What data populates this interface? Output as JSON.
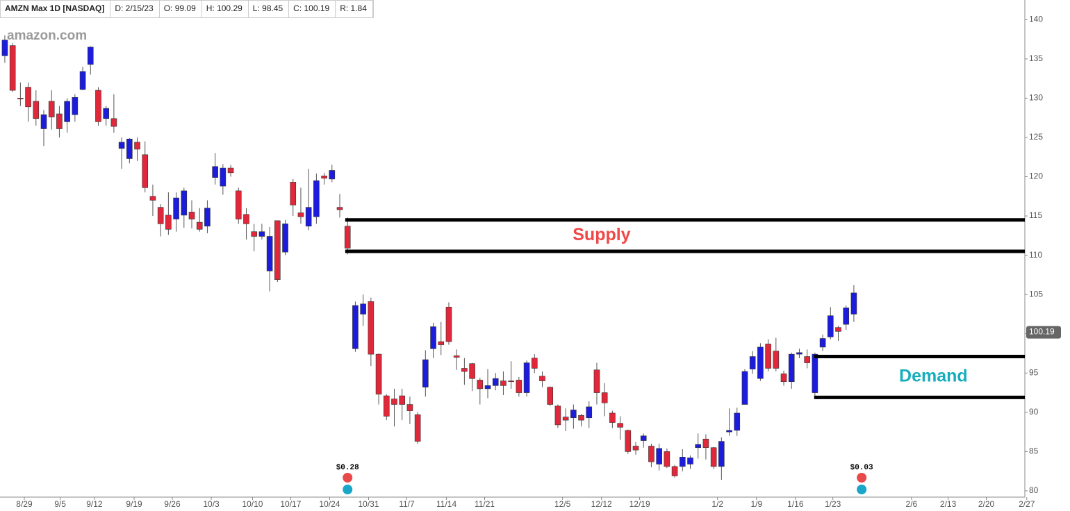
{
  "header": [
    "AMZN Max 1D [NASDAQ]",
    "D: 2/15/23",
    "O: 99.09",
    "H: 100.29",
    "L: 98.45",
    "C: 100.19",
    "R: 1.84"
  ],
  "chart_data": {
    "type": "candlestick",
    "logo": "amazon.com",
    "up_color": "#1c1cdc",
    "down_color": "#e0283a",
    "open": [
      135.4,
      136.7,
      130,
      131.4,
      129.6,
      126.1,
      129.6,
      128.0,
      127.0,
      127.9,
      131.1,
      134.3,
      131.0,
      127.4,
      127.4,
      123.6,
      122.3,
      124.4,
      122.8,
      117.5,
      116.1,
      115.1,
      114.6,
      115.1,
      115.5,
      114.2,
      113.7,
      119.9,
      118.8,
      121.1,
      118.2,
      115.2,
      113.0,
      112.4,
      108.0,
      114.4,
      110.4,
      119.3,
      115.4,
      113.7,
      114.9,
      120.1,
      119.7,
      116.1,
      113.7,
      98.1,
      102.5,
      104.1,
      97.4,
      92.1,
      91.7,
      92.1,
      91.0,
      89.7,
      93.2,
      98.1,
      99.0,
      103.4,
      97.2,
      95.6,
      96.2,
      94.1,
      93.0,
      93.4,
      94.0,
      94.0,
      94.1,
      92.5,
      96.9,
      94.6,
      93.2,
      90.8,
      89.4,
      89.3,
      89.6,
      89.3,
      95.4,
      92.5,
      89.9,
      88.6,
      87.7,
      85.7,
      86.4,
      85.7,
      83.4,
      85.0,
      83.1,
      83.1,
      83.4,
      85.5,
      86.6,
      85.5,
      83.1,
      87.5,
      87.7,
      91.0,
      95.5,
      94.3,
      98.7,
      97.8,
      94.9,
      93.9,
      97.4,
      97.1,
      92.5,
      98.3,
      99.6,
      100.8,
      101.2,
      102.5
    ],
    "high": [
      138,
      137,
      132,
      132,
      131,
      128.5,
      131,
      129,
      130,
      130.5,
      134,
      136.6,
      131.4,
      129,
      130.5,
      125,
      124.9,
      125,
      124.5,
      119,
      116.5,
      118,
      118,
      118.6,
      117,
      116,
      117,
      123,
      121.6,
      121.5,
      118.6,
      116,
      114,
      114,
      113.6,
      114.4,
      114.5,
      119.7,
      118.6,
      121,
      120.4,
      120.5,
      121.5,
      117.8,
      114.8,
      104.1,
      105,
      104.6,
      97.5,
      92.3,
      93,
      93,
      92,
      90,
      97.9,
      101.4,
      101.5,
      104,
      98,
      96.9,
      96.3,
      94.4,
      95.5,
      95,
      95.2,
      96.5,
      94.5,
      96.6,
      97.4,
      95.2,
      93.3,
      91,
      90.5,
      91,
      89.8,
      91.4,
      96.3,
      93.7,
      90.2,
      89.5,
      87.8,
      86.2,
      87.3,
      86,
      86,
      85.4,
      83.3,
      85.3,
      84.5,
      87.3,
      87.2,
      85.6,
      86.8,
      90.5,
      90.6,
      95.5,
      97.8,
      98.8,
      99.3,
      99.5,
      95.3,
      97.6,
      98.1,
      98,
      97.6,
      99.9,
      103.4,
      101,
      103.6,
      106.2
    ],
    "low": [
      134.5,
      130.8,
      129,
      127,
      126.5,
      123.9,
      126,
      125,
      125.6,
      127,
      131,
      133,
      126.5,
      126.5,
      125.6,
      121,
      121.7,
      122,
      118,
      115,
      112.4,
      112.6,
      113,
      113.5,
      113.4,
      113,
      112.8,
      119,
      117.7,
      120,
      114,
      112,
      110.5,
      112,
      105.4,
      106.6,
      110,
      115,
      114,
      113.2,
      114,
      119,
      119.3,
      114.8,
      110.1,
      97.7,
      101,
      95.9,
      91,
      89,
      88.2,
      89,
      88.5,
      86,
      92,
      96.9,
      97.3,
      98.6,
      95.4,
      93.5,
      92.7,
      91,
      91.8,
      92.8,
      92.2,
      93,
      92,
      92,
      95,
      93.2,
      90.8,
      88,
      87.6,
      87.9,
      88.2,
      88,
      91,
      89.5,
      88,
      86.5,
      84.7,
      84.6,
      85.5,
      83,
      82.6,
      82.9,
      81.7,
      82.5,
      82.8,
      84.1,
      84,
      82.8,
      81.4,
      87,
      87,
      91,
      94.9,
      94,
      95.2,
      95.2,
      93.4,
      93,
      96.9,
      95.6,
      91.9,
      97.8,
      99.3,
      99.1,
      100.5,
      101.5
    ],
    "close": [
      137.4,
      131.0,
      129.9,
      128.9,
      127.4,
      127.9,
      127.6,
      126.1,
      129.6,
      130.1,
      133.4,
      136.5,
      127.0,
      128.7,
      126.4,
      124.4,
      124.8,
      123.5,
      118.6,
      117.0,
      114.0,
      113.3,
      117.3,
      118.2,
      114.6,
      113.3,
      116.0,
      121.3,
      121.1,
      120.5,
      114.6,
      114.0,
      112.4,
      113.0,
      112.4,
      106.9,
      114.0,
      116.4,
      114.9,
      116.1,
      119.5,
      119.8,
      120.8,
      115.8,
      110.9,
      103.6,
      103.8,
      97.4,
      92.3,
      89.5,
      91.0,
      91.0,
      90.2,
      86.3,
      96.7,
      100.9,
      98.6,
      99.0,
      97.0,
      95.2,
      94.3,
      93.0,
      93.4,
      94.3,
      93.4,
      93.9,
      92.5,
      96.3,
      95.6,
      94.0,
      91.0,
      88.4,
      89.0,
      90.3,
      89.0,
      90.7,
      92.5,
      91.2,
      88.7,
      88.1,
      85.0,
      85.2,
      87.0,
      83.7,
      85.4,
      83.1,
      81.9,
      84.3,
      84.2,
      85.9,
      85.5,
      83.1,
      86.3,
      87.7,
      89.9,
      95.2,
      97.1,
      98.3,
      95.6,
      95.6,
      93.9,
      97.4,
      97.6,
      96.3,
      97.4,
      99.4,
      102.3,
      100.3,
      103.3,
      105.2
    ],
    "xlim": [
      -0.62,
      130.95
    ],
    "xticks": [
      {
        "value": 2.5,
        "label": "8/29"
      },
      {
        "value": 7.1,
        "label": "9/5"
      },
      {
        "value": 11.5,
        "label": "9/12"
      },
      {
        "value": 16.6,
        "label": "9/19"
      },
      {
        "value": 21.5,
        "label": "9/26"
      },
      {
        "value": 26.5,
        "label": "10/3"
      },
      {
        "value": 31.8,
        "label": "10/10"
      },
      {
        "value": 36.7,
        "label": "10/17"
      },
      {
        "value": 41.7,
        "label": "10/24"
      },
      {
        "value": 46.7,
        "label": "10/31"
      },
      {
        "value": 51.6,
        "label": "11/7"
      },
      {
        "value": 56.7,
        "label": "11/14"
      },
      {
        "value": 61.6,
        "label": "11/21"
      },
      {
        "value": 71.6,
        "label": "12/5"
      },
      {
        "value": 76.6,
        "label": "12/12"
      },
      {
        "value": 81.5,
        "label": "12/19"
      },
      {
        "value": 91.5,
        "label": "1/2"
      },
      {
        "value": 96.5,
        "label": "1/9"
      },
      {
        "value": 101.5,
        "label": "1/16"
      },
      {
        "value": 106.3,
        "label": "1/23"
      },
      {
        "value": 116.4,
        "label": "2/6"
      },
      {
        "value": 121.1,
        "label": "2/13"
      },
      {
        "value": 126.0,
        "label": "2/20"
      },
      {
        "value": 131.2,
        "label": "2/27"
      }
    ],
    "ylim": [
      79.2,
      142.5
    ],
    "yticks": [
      80,
      85,
      90,
      95,
      100,
      105,
      110,
      115,
      120,
      125,
      130,
      135,
      140
    ],
    "last_price": 100.19,
    "zones": [
      {
        "label": "Supply",
        "color": "#f04848",
        "start_x": 43.7,
        "top": 114.5,
        "bottom": 110.5
      },
      {
        "label": "Demand",
        "color": "#16aebe",
        "start_x": 103.9,
        "top": 97.1,
        "bottom": 91.9
      }
    ],
    "events": [
      {
        "x": 44,
        "label": "$0.28"
      },
      {
        "x": 110,
        "label": "$0.03"
      }
    ]
  }
}
